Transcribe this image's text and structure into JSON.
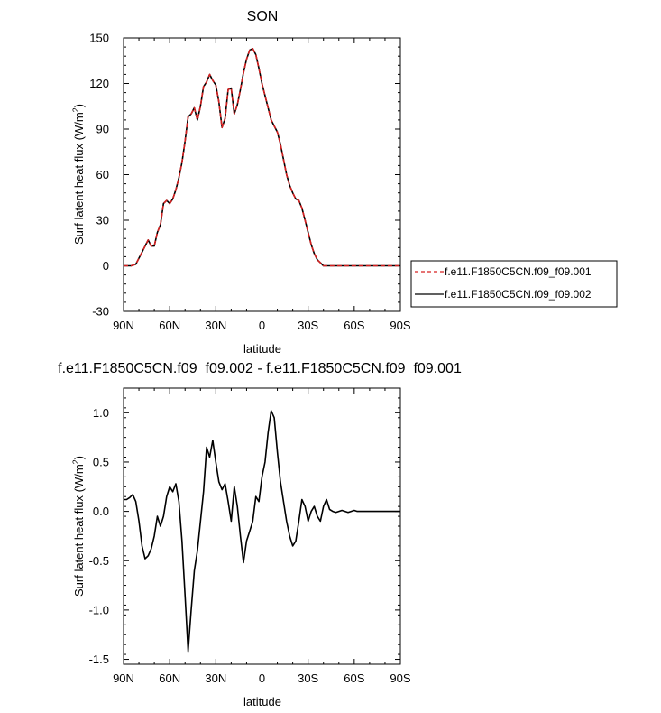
{
  "chart_data": [
    {
      "type": "line",
      "title": "SON",
      "xlabel": "latitude",
      "ylabel": "Surf latent heat flux (W/m",
      "ylabel_sup": "2",
      "ylabel_close": ")",
      "xlim": [
        90,
        -90
      ],
      "ylim": [
        -30,
        150
      ],
      "xticks": [
        90,
        60,
        30,
        0,
        -30,
        -60,
        -90
      ],
      "xtick_labels": [
        "90N",
        "60N",
        "30N",
        "0",
        "30S",
        "60S",
        "90S"
      ],
      "yticks": [
        -30,
        0,
        30,
        60,
        90,
        120,
        150
      ],
      "ytick_labels": [
        "-30",
        "0",
        "30",
        "60",
        "90",
        "120",
        "150"
      ],
      "legend": {
        "placement": "right",
        "entries": [
          "f.e11.F1850C5CN.f09_f09.001",
          "f.e11.F1850C5CN.f09_f09.002"
        ]
      },
      "series": [
        {
          "name": "f.e11.F1850C5CN.f09_f09.001",
          "color": "#d62020",
          "dash": "dashed",
          "x": [
            90,
            85,
            82,
            78,
            74,
            72,
            70,
            68,
            66,
            64,
            62,
            60,
            58,
            56,
            54,
            52,
            50,
            48,
            46,
            44,
            42,
            40,
            38,
            36,
            34,
            32,
            30,
            28,
            26,
            24,
            22,
            20,
            18,
            16,
            14,
            12,
            10,
            8,
            6,
            4,
            2,
            0,
            -2,
            -4,
            -6,
            -8,
            -10,
            -12,
            -14,
            -16,
            -18,
            -20,
            -22,
            -24,
            -26,
            -28,
            -30,
            -32,
            -34,
            -36,
            -38,
            -40,
            -42,
            -44,
            -46,
            -48,
            -50,
            -52,
            -54,
            -56,
            -58,
            -60,
            -62,
            -64,
            -66,
            -68,
            -70,
            -72,
            -74,
            -76,
            -78,
            -80,
            -82,
            -84,
            -86,
            -88,
            -90
          ],
          "y": [
            0,
            0,
            1,
            9,
            17,
            13,
            13,
            22,
            27,
            41,
            43,
            41,
            44,
            50,
            58,
            68,
            82,
            98,
            100,
            104,
            96,
            105,
            118,
            121,
            126,
            122,
            119,
            108,
            91,
            97,
            116,
            117,
            100,
            106,
            116,
            127,
            136,
            142,
            143,
            139,
            130,
            120,
            112,
            104,
            96,
            92,
            88,
            80,
            70,
            60,
            53,
            48,
            44,
            43,
            38,
            30,
            22,
            14,
            8,
            4,
            2,
            0,
            0,
            0,
            0,
            0,
            0,
            0,
            0,
            0,
            0,
            0,
            0,
            0,
            0,
            0,
            0,
            0,
            0,
            0,
            0,
            0,
            0,
            0,
            0,
            0,
            0
          ]
        },
        {
          "name": "f.e11.F1850C5CN.f09_f09.002",
          "color": "#000000",
          "dash": "solid",
          "x": [
            90,
            85,
            82,
            78,
            74,
            72,
            70,
            68,
            66,
            64,
            62,
            60,
            58,
            56,
            54,
            52,
            50,
            48,
            46,
            44,
            42,
            40,
            38,
            36,
            34,
            32,
            30,
            28,
            26,
            24,
            22,
            20,
            18,
            16,
            14,
            12,
            10,
            8,
            6,
            4,
            2,
            0,
            -2,
            -4,
            -6,
            -8,
            -10,
            -12,
            -14,
            -16,
            -18,
            -20,
            -22,
            -24,
            -26,
            -28,
            -30,
            -32,
            -34,
            -36,
            -38,
            -40,
            -42,
            -44,
            -46,
            -48,
            -50,
            -52,
            -54,
            -56,
            -58,
            -60,
            -62,
            -64,
            -66,
            -68,
            -70,
            -72,
            -74,
            -76,
            -78,
            -80,
            -82,
            -84,
            -86,
            -88,
            -90
          ],
          "y": [
            0,
            0,
            1,
            9,
            17,
            13,
            13,
            22,
            27,
            41,
            43,
            41,
            44,
            50,
            58,
            68,
            82,
            98,
            100,
            104,
            96,
            105,
            118,
            121,
            126,
            122,
            119,
            108,
            91,
            97,
            116,
            117,
            100,
            106,
            116,
            127,
            136,
            142,
            143,
            139,
            130,
            120,
            112,
            104,
            96,
            92,
            88,
            80,
            70,
            60,
            53,
            48,
            44,
            43,
            38,
            30,
            22,
            14,
            8,
            4,
            2,
            0,
            0,
            0,
            0,
            0,
            0,
            0,
            0,
            0,
            0,
            0,
            0,
            0,
            0,
            0,
            0,
            0,
            0,
            0,
            0,
            0,
            0,
            0,
            0,
            0,
            0
          ]
        }
      ]
    },
    {
      "type": "line",
      "title": "f.e11.F1850C5CN.f09_f09.002 - f.e11.F1850C5CN.f09_f09.001",
      "xlabel": "latitude",
      "ylabel": "Surf latent heat flux (W/m",
      "ylabel_sup": "2",
      "ylabel_close": ")",
      "xlim": [
        90,
        -90
      ],
      "ylim": [
        -1.55,
        1.25
      ],
      "xticks": [
        90,
        60,
        30,
        0,
        -30,
        -60,
        -90
      ],
      "xtick_labels": [
        "90N",
        "60N",
        "30N",
        "0",
        "30S",
        "60S",
        "90S"
      ],
      "yticks": [
        -1.5,
        -1.0,
        -0.5,
        0.0,
        0.5,
        1.0
      ],
      "ytick_labels": [
        "-1.5",
        "-1.0",
        "-0.5",
        "0.0",
        "0.5",
        "1.0"
      ],
      "series": [
        {
          "color": "#000000",
          "dash": "solid",
          "x": [
            90,
            88,
            86,
            84,
            82,
            80,
            78,
            76,
            74,
            72,
            70,
            68,
            66,
            64,
            62,
            60,
            58,
            56,
            54,
            52,
            50,
            48,
            46,
            44,
            42,
            40,
            38,
            36,
            34,
            32,
            30,
            28,
            26,
            24,
            22,
            20,
            18,
            16,
            14,
            12,
            10,
            8,
            6,
            4,
            2,
            0,
            -2,
            -4,
            -6,
            -8,
            -10,
            -12,
            -14,
            -16,
            -18,
            -20,
            -22,
            -24,
            -26,
            -28,
            -30,
            -32,
            -34,
            -36,
            -38,
            -40,
            -42,
            -44,
            -46,
            -48,
            -50,
            -52,
            -54,
            -56,
            -58,
            -60,
            -62,
            -64,
            -66,
            -68,
            -70,
            -72,
            -74,
            -76,
            -78,
            -80,
            -82,
            -84,
            -86,
            -88,
            -90
          ],
          "y": [
            0.12,
            0.12,
            0.14,
            0.17,
            0.1,
            -0.1,
            -0.35,
            -0.48,
            -0.45,
            -0.38,
            -0.25,
            -0.05,
            -0.15,
            -0.05,
            0.15,
            0.25,
            0.2,
            0.28,
            0.1,
            -0.3,
            -0.85,
            -1.42,
            -1.0,
            -0.6,
            -0.4,
            -0.1,
            0.2,
            0.65,
            0.55,
            0.72,
            0.5,
            0.3,
            0.22,
            0.28,
            0.1,
            -0.1,
            0.25,
            0.05,
            -0.25,
            -0.52,
            -0.3,
            -0.2,
            -0.1,
            0.15,
            0.1,
            0.35,
            0.5,
            0.8,
            1.02,
            0.95,
            0.6,
            0.3,
            0.1,
            -0.1,
            -0.25,
            -0.35,
            -0.3,
            -0.1,
            0.12,
            0.05,
            -0.1,
            0.0,
            0.05,
            -0.05,
            -0.1,
            0.05,
            0.12,
            0.02,
            0.0,
            -0.01,
            0.0,
            0.01,
            0.0,
            -0.01,
            0.0,
            0.01,
            0.0,
            0.0,
            0.0,
            0.0,
            0.0,
            0.0,
            0.0,
            0.0,
            0.0,
            0.0,
            0.0,
            0.0,
            0.0,
            0.0,
            0.0
          ]
        }
      ]
    }
  ]
}
